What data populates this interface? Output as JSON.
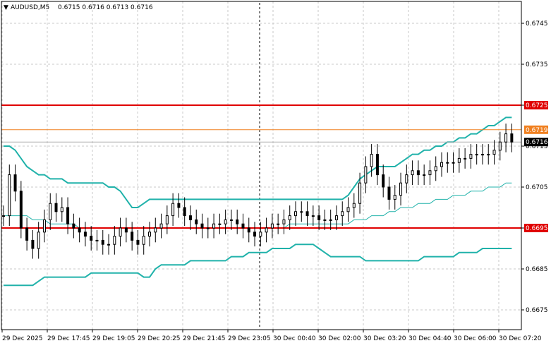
{
  "header": {
    "symbol_label": "AUDUSD,M5",
    "ohlc_label": "0.6715 0.6716 0.6713 0.6716"
  },
  "price_tag": {
    "value": "0.6716",
    "bg": "#000000",
    "fg": "#ffffff"
  },
  "levels": [
    {
      "value": 0.6725,
      "label": "0.6725",
      "color": "#e00000"
    },
    {
      "value": 0.6719,
      "label": "0.6719",
      "color": "#f08020"
    },
    {
      "value": 0.6695,
      "label": "0.6695",
      "color": "#e00000"
    }
  ],
  "colors": {
    "candle": "#000000",
    "bands": "#20b2aa",
    "grid": "#c8c8c8",
    "crosshair": "#000000"
  },
  "chart_data": {
    "type": "candlestick",
    "title": "AUDUSD,M5",
    "timeframe": "M5",
    "y_ticks": [
      "0.6745",
      "0.6735",
      "0.6725",
      "0.6715",
      "0.6705",
      "0.6695",
      "0.6685",
      "0.6675"
    ],
    "x_ticks": [
      "29 Dec 2025",
      "29 Dec 17:45",
      "29 Dec 19:05",
      "29 Dec 20:25",
      "29 Dec 21:45",
      "29 Dec 23:05",
      "30 Dec 00:40",
      "30 Dec 02:00",
      "30 Dec 03:20",
      "30 Dec 04:40",
      "30 Dec 06:00",
      "30 Dec 07:20"
    ],
    "ylim": [
      0.6669,
      0.6756
    ],
    "grid": true,
    "close_series": [
      0.6698,
      0.6708,
      0.6704,
      0.6695,
      0.6692,
      0.669,
      0.6694,
      0.6697,
      0.6701,
      0.6699,
      0.67,
      0.6696,
      0.6695,
      0.6694,
      0.6693,
      0.6692,
      0.6692,
      0.6691,
      0.6691,
      0.6693,
      0.6695,
      0.6694,
      0.6692,
      0.6691,
      0.6693,
      0.6694,
      0.6695,
      0.6696,
      0.6698,
      0.6701,
      0.67,
      0.6698,
      0.6697,
      0.6696,
      0.6695,
      0.6695,
      0.6696,
      0.6696,
      0.6697,
      0.6697,
      0.6696,
      0.6695,
      0.6694,
      0.6693,
      0.6694,
      0.6695,
      0.6696,
      0.6696,
      0.6697,
      0.6698,
      0.6699,
      0.6699,
      0.6698,
      0.6698,
      0.6697,
      0.6697,
      0.6697,
      0.6698,
      0.6699,
      0.67,
      0.6701,
      0.6706,
      0.671,
      0.6713,
      0.6708,
      0.6705,
      0.6702,
      0.6703,
      0.6706,
      0.6708,
      0.6709,
      0.6708,
      0.6708,
      0.6709,
      0.671,
      0.6711,
      0.6711,
      0.6711,
      0.6712,
      0.6712,
      0.6713,
      0.6713,
      0.6713,
      0.6713,
      0.6714,
      0.6716,
      0.6718,
      0.6716
    ],
    "series": [
      {
        "name": "upper band",
        "values": [
          0.6715,
          0.6715,
          0.6714,
          0.6712,
          0.671,
          0.6709,
          0.6708,
          0.6708,
          0.6707,
          0.6707,
          0.6707,
          0.6706,
          0.6706,
          0.6706,
          0.6706,
          0.6706,
          0.6706,
          0.6706,
          0.6705,
          0.6705,
          0.6704,
          0.6702,
          0.67,
          0.67,
          0.6701,
          0.6702,
          0.6702,
          0.6702,
          0.6702,
          0.6702,
          0.6702,
          0.6702,
          0.6702,
          0.6702,
          0.6702,
          0.6702,
          0.6702,
          0.6702,
          0.6702,
          0.6702,
          0.6702,
          0.6702,
          0.6702,
          0.6702,
          0.6702,
          0.6702,
          0.6702,
          0.6702,
          0.6702,
          0.6702,
          0.6702,
          0.6702,
          0.6702,
          0.6702,
          0.6702,
          0.6702,
          0.6702,
          0.6702,
          0.6702,
          0.6703,
          0.6705,
          0.6707,
          0.6708,
          0.6709,
          0.671,
          0.671,
          0.671,
          0.671,
          0.6711,
          0.6712,
          0.6713,
          0.6713,
          0.6714,
          0.6714,
          0.6715,
          0.6715,
          0.6716,
          0.6716,
          0.6717,
          0.6717,
          0.6718,
          0.6718,
          0.6719,
          0.672,
          0.672,
          0.6721,
          0.6722,
          0.6722
        ]
      },
      {
        "name": "middle band",
        "values": [
          0.6698,
          0.6698,
          0.6698,
          0.6698,
          0.6698,
          0.6697,
          0.6697,
          0.6697,
          0.6696,
          0.6696,
          0.6696,
          0.6696,
          0.6696,
          0.6695,
          0.6695,
          0.6695,
          0.6695,
          0.6695,
          0.6695,
          0.6695,
          0.6695,
          0.6695,
          0.6695,
          0.6695,
          0.6695,
          0.6695,
          0.6695,
          0.6695,
          0.6695,
          0.6695,
          0.6695,
          0.6695,
          0.6695,
          0.6695,
          0.6695,
          0.6695,
          0.6695,
          0.6695,
          0.6695,
          0.6695,
          0.6695,
          0.6695,
          0.6695,
          0.6695,
          0.6695,
          0.6695,
          0.6695,
          0.6695,
          0.6695,
          0.6696,
          0.6696,
          0.6696,
          0.6696,
          0.6696,
          0.6696,
          0.6696,
          0.6696,
          0.6696,
          0.6696,
          0.6696,
          0.6697,
          0.6697,
          0.6697,
          0.6698,
          0.6698,
          0.6698,
          0.6699,
          0.6699,
          0.67,
          0.67,
          0.67,
          0.6701,
          0.6701,
          0.6701,
          0.6702,
          0.6702,
          0.6702,
          0.6703,
          0.6703,
          0.6703,
          0.6704,
          0.6704,
          0.6704,
          0.6705,
          0.6705,
          0.6705,
          0.6706,
          0.6706
        ]
      },
      {
        "name": "lower band",
        "values": [
          0.6681,
          0.6681,
          0.6681,
          0.6681,
          0.6681,
          0.6681,
          0.6682,
          0.6683,
          0.6683,
          0.6683,
          0.6683,
          0.6683,
          0.6683,
          0.6683,
          0.6683,
          0.6684,
          0.6684,
          0.6684,
          0.6684,
          0.6684,
          0.6684,
          0.6684,
          0.6684,
          0.6684,
          0.6683,
          0.6683,
          0.6685,
          0.6686,
          0.6686,
          0.6686,
          0.6686,
          0.6686,
          0.6687,
          0.6687,
          0.6687,
          0.6687,
          0.6687,
          0.6687,
          0.6687,
          0.6688,
          0.6688,
          0.6688,
          0.6689,
          0.6689,
          0.6689,
          0.6689,
          0.669,
          0.669,
          0.669,
          0.669,
          0.6691,
          0.6691,
          0.6691,
          0.6691,
          0.669,
          0.6689,
          0.6688,
          0.6688,
          0.6688,
          0.6688,
          0.6688,
          0.6688,
          0.6687,
          0.6687,
          0.6687,
          0.6687,
          0.6687,
          0.6687,
          0.6687,
          0.6687,
          0.6687,
          0.6687,
          0.6688,
          0.6688,
          0.6688,
          0.6688,
          0.6688,
          0.6688,
          0.6689,
          0.6689,
          0.6689,
          0.6689,
          0.669,
          0.669,
          0.669,
          0.669,
          0.669,
          0.669
        ]
      }
    ]
  }
}
